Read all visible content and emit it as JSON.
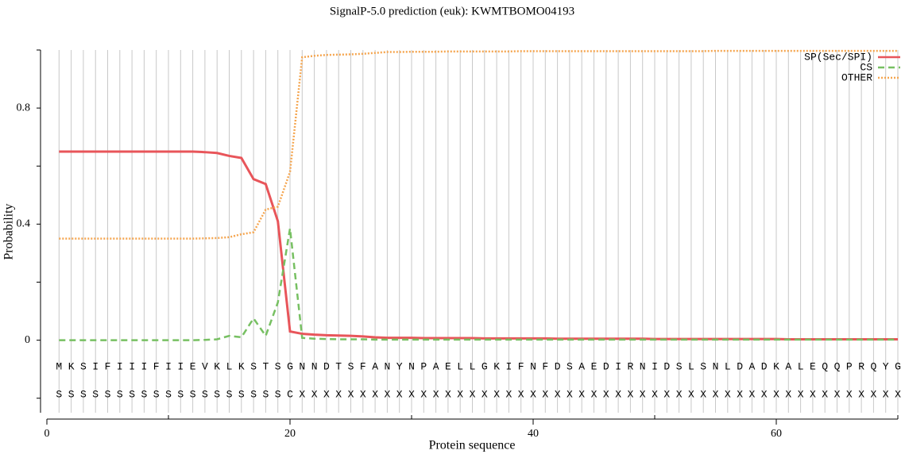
{
  "chart_data": {
    "type": "line",
    "title": "SignalP-5.0 prediction (euk):  KWMTBOMO04193",
    "xlabel": "Protein sequence",
    "ylabel": "Probability",
    "x": [
      1,
      2,
      3,
      4,
      5,
      6,
      7,
      8,
      9,
      10,
      11,
      12,
      13,
      14,
      15,
      16,
      17,
      18,
      19,
      20,
      21,
      22,
      23,
      24,
      25,
      26,
      27,
      28,
      29,
      30,
      31,
      32,
      33,
      34,
      35,
      36,
      37,
      38,
      39,
      40,
      41,
      42,
      43,
      44,
      45,
      46,
      47,
      48,
      49,
      50,
      51,
      52,
      53,
      54,
      55,
      56,
      57,
      58,
      59,
      60,
      61,
      62,
      63,
      64,
      65,
      66,
      67,
      68,
      69,
      70
    ],
    "sequence": [
      "M",
      "K",
      "S",
      "I",
      "F",
      "I",
      "I",
      "I",
      "F",
      "I",
      "I",
      "E",
      "V",
      "K",
      "L",
      "K",
      "S",
      "T",
      "S",
      "G",
      "N",
      "N",
      "D",
      "T",
      "S",
      "F",
      "A",
      "N",
      "Y",
      "N",
      "P",
      "A",
      "E",
      "L",
      "L",
      "G",
      "K",
      "I",
      "F",
      "N",
      "F",
      "D",
      "S",
      "A",
      "E",
      "D",
      "I",
      "R",
      "N",
      "I",
      "D",
      "S",
      "L",
      "S",
      "N",
      "L",
      "D",
      "A",
      "D",
      "K",
      "A",
      "L",
      "E",
      "Q",
      "Q",
      "P",
      "R",
      "Q",
      "Y",
      "G"
    ],
    "labels": [
      "S",
      "S",
      "S",
      "S",
      "S",
      "S",
      "S",
      "S",
      "S",
      "S",
      "S",
      "S",
      "S",
      "S",
      "S",
      "S",
      "S",
      "S",
      "S",
      "C",
      "X",
      "X",
      "X",
      "X",
      "X",
      "X",
      "X",
      "X",
      "X",
      "X",
      "X",
      "X",
      "X",
      "X",
      "X",
      "X",
      "X",
      "X",
      "X",
      "X",
      "X",
      "X",
      "X",
      "X",
      "X",
      "X",
      "X",
      "X",
      "X",
      "X",
      "X",
      "X",
      "X",
      "X",
      "X",
      "X",
      "X",
      "X",
      "X",
      "X",
      "X",
      "X",
      "X",
      "X",
      "X",
      "X",
      "X",
      "X",
      "X",
      "X"
    ],
    "series": [
      {
        "name": "SP(Sec/SPI)",
        "color": "#e8555a",
        "linestyle": "solid",
        "values": [
          0.65,
          0.65,
          0.65,
          0.65,
          0.65,
          0.65,
          0.65,
          0.65,
          0.65,
          0.65,
          0.65,
          0.65,
          0.648,
          0.645,
          0.635,
          0.628,
          0.555,
          0.538,
          0.41,
          0.03,
          0.022,
          0.019,
          0.017,
          0.016,
          0.015,
          0.013,
          0.01,
          0.008,
          0.008,
          0.008,
          0.007,
          0.007,
          0.007,
          0.007,
          0.007,
          0.006,
          0.006,
          0.006,
          0.006,
          0.006,
          0.006,
          0.005,
          0.005,
          0.005,
          0.005,
          0.005,
          0.005,
          0.005,
          0.005,
          0.004,
          0.004,
          0.004,
          0.004,
          0.004,
          0.004,
          0.004,
          0.004,
          0.004,
          0.004,
          0.004,
          0.003,
          0.003,
          0.003,
          0.003,
          0.003,
          0.003,
          0.003,
          0.003,
          0.003,
          0.003
        ]
      },
      {
        "name": "CS",
        "color": "#77c062",
        "linestyle": "dashed",
        "values": [
          0,
          0,
          0,
          0,
          0,
          0,
          0,
          0,
          0,
          0,
          0,
          0,
          0.001,
          0.003,
          0.015,
          0.01,
          0.075,
          0.015,
          0.13,
          0.385,
          0.008,
          0.005,
          0.004,
          0.003,
          0.003,
          0.003,
          0.002,
          0.002,
          0.002,
          0.002,
          0.002,
          0.002,
          0.002,
          0.002,
          0.002,
          0.002,
          0.002,
          0.002,
          0.002,
          0.002,
          0.002,
          0.002,
          0.002,
          0.002,
          0.002,
          0.002,
          0.002,
          0.002,
          0.002,
          0.002,
          0.002,
          0.002,
          0.002,
          0.002,
          0.002,
          0.002,
          0.002,
          0.002,
          0.002,
          0.002,
          0.002,
          0.002,
          0.002,
          0.002,
          0.002,
          0.002,
          0.002,
          0.002,
          0.002,
          0.002
        ]
      },
      {
        "name": "OTHER",
        "color": "#f5a650",
        "linestyle": "dotted",
        "values": [
          0.35,
          0.35,
          0.35,
          0.35,
          0.35,
          0.35,
          0.35,
          0.35,
          0.35,
          0.35,
          0.35,
          0.35,
          0.351,
          0.352,
          0.355,
          0.365,
          0.372,
          0.45,
          0.46,
          0.58,
          0.975,
          0.98,
          0.983,
          0.984,
          0.985,
          0.987,
          0.99,
          0.993,
          0.993,
          0.994,
          0.994,
          0.994,
          0.995,
          0.995,
          0.995,
          0.995,
          0.995,
          0.995,
          0.996,
          0.996,
          0.996,
          0.996,
          0.996,
          0.996,
          0.996,
          0.996,
          0.996,
          0.996,
          0.996,
          0.996,
          0.996,
          0.996,
          0.996,
          0.996,
          0.997,
          0.997,
          0.997,
          0.997,
          0.997,
          0.997,
          0.997,
          0.997,
          0.997,
          0.997,
          0.997,
          0.997,
          0.997,
          0.997,
          0.997,
          0.997
        ]
      }
    ],
    "xlim": [
      0,
      70
    ],
    "xticks": [
      0,
      20,
      40,
      60
    ],
    "minor_xticks": [
      10,
      30,
      50,
      70
    ],
    "ylim": [
      -0.25,
      1
    ],
    "yticks": [
      0,
      0.4,
      0.8
    ],
    "minor_yticks": [
      -0.2,
      0.2,
      0.6,
      1.0
    ],
    "grid": true,
    "legend": "upper right"
  }
}
